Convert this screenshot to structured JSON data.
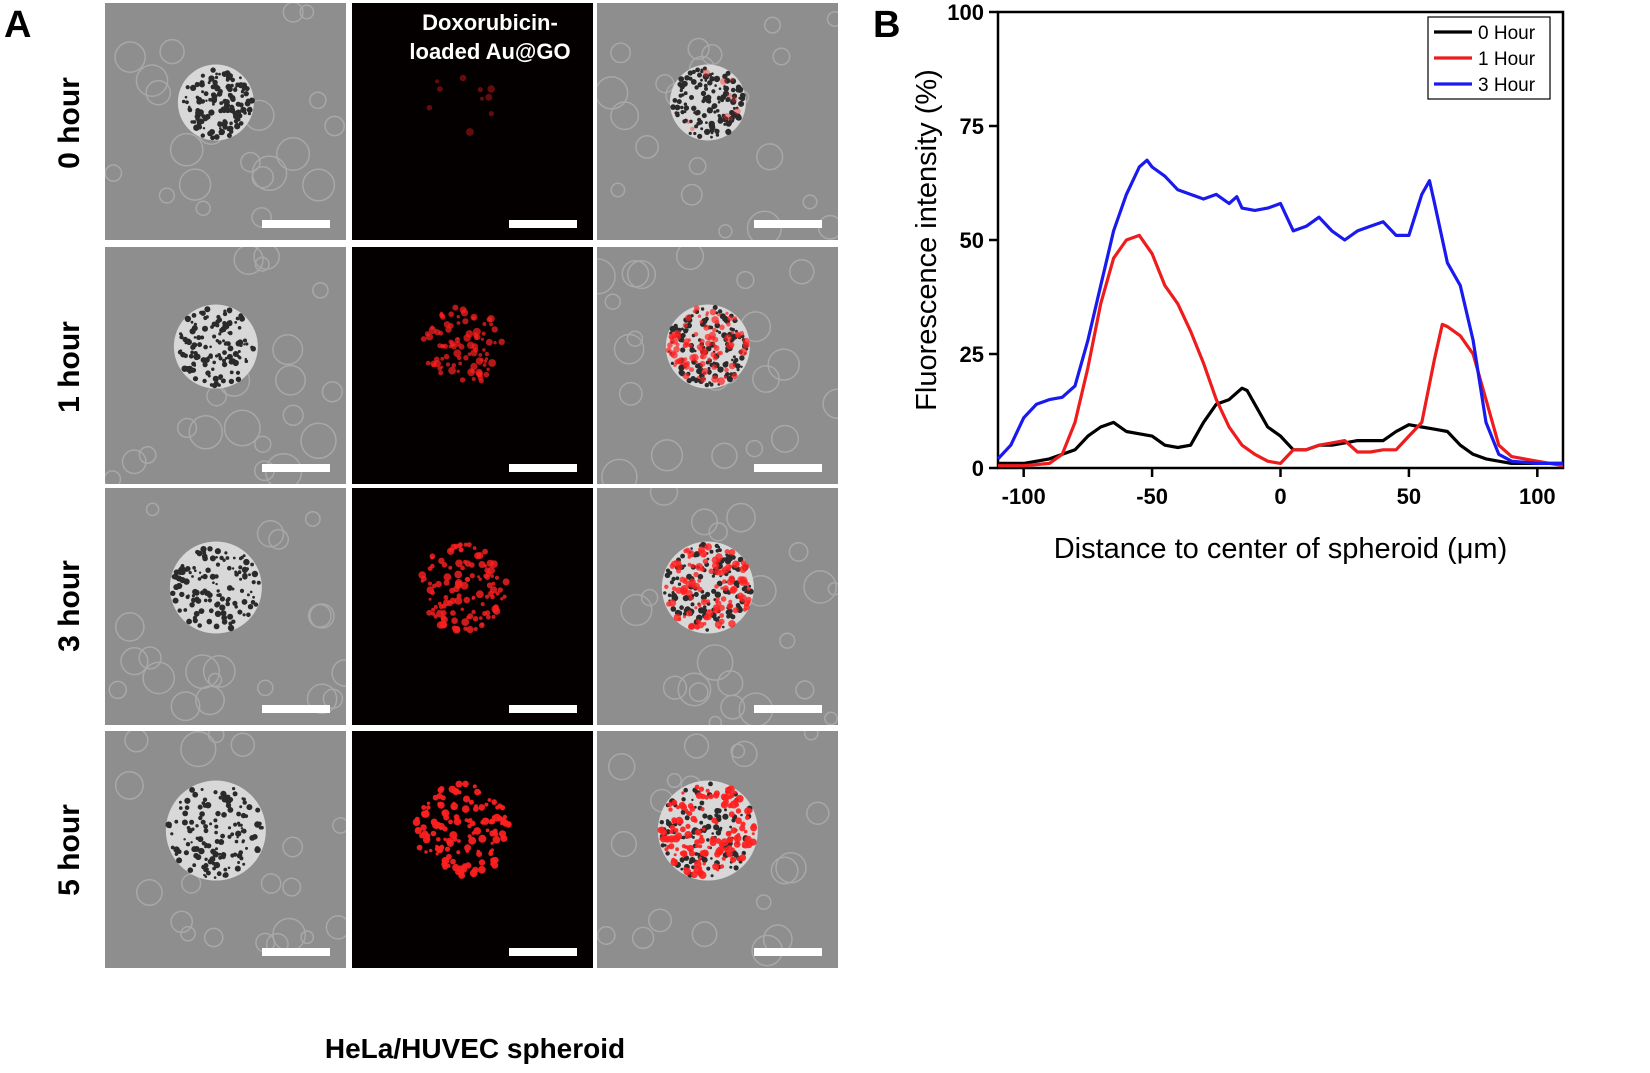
{
  "figure": {
    "panel_a": {
      "letter": "A",
      "column_title_line1": "Doxorubicin-",
      "column_title_line2": "loaded Au@GO",
      "rows": [
        {
          "label": "0 hour",
          "red_level": 0.06
        },
        {
          "label": "1 hour",
          "red_level": 0.6
        },
        {
          "label": "3 hour",
          "red_level": 0.75
        },
        {
          "label": "5 hour",
          "red_level": 0.95
        }
      ],
      "caption": "HeLa/HUVEC spheroid"
    },
    "panel_b": {
      "letter": "B"
    }
  },
  "colors": {
    "black": "#000000",
    "red": "#ee1c1c",
    "blue": "#1a1aee",
    "fluor": "#ff2020"
  },
  "chart_data": {
    "type": "line",
    "title": "",
    "xlabel": "Distance to center of spheroid (μm)",
    "ylabel": "Fluorescence intensity (%)",
    "xlim": [
      -110,
      110
    ],
    "ylim": [
      0,
      100
    ],
    "xticks": [
      -100,
      -50,
      0,
      50,
      100
    ],
    "yticks": [
      0,
      25,
      50,
      75,
      100
    ],
    "grid": false,
    "legend_position": "top-right",
    "series": [
      {
        "name": "0 Hour",
        "color": "#000000",
        "x": [
          -110,
          -100,
          -90,
          -80,
          -75,
          -70,
          -65,
          -60,
          -55,
          -50,
          -45,
          -40,
          -35,
          -30,
          -25,
          -20,
          -15,
          -13,
          -10,
          -5,
          0,
          5,
          10,
          15,
          20,
          25,
          30,
          35,
          40,
          45,
          50,
          55,
          60,
          65,
          70,
          75,
          80,
          90,
          100,
          110
        ],
        "y": [
          1,
          1,
          2,
          4,
          7,
          9,
          10,
          8,
          7.5,
          7,
          5,
          4.5,
          5,
          10,
          14,
          15,
          17.5,
          17,
          14,
          9,
          7,
          4,
          4,
          5,
          5,
          5.5,
          6,
          6,
          6,
          8,
          9.5,
          9,
          8.5,
          8,
          5,
          3,
          2,
          1,
          1,
          1
        ]
      },
      {
        "name": "1 Hour",
        "color": "#ee1c1c",
        "x": [
          -110,
          -100,
          -90,
          -85,
          -80,
          -75,
          -70,
          -65,
          -60,
          -55,
          -50,
          -45,
          -40,
          -35,
          -30,
          -25,
          -20,
          -15,
          -10,
          -5,
          0,
          5,
          10,
          15,
          20,
          25,
          30,
          35,
          40,
          45,
          50,
          55,
          60,
          63,
          65,
          70,
          75,
          80,
          85,
          90,
          100,
          110
        ],
        "y": [
          0.5,
          0.5,
          1,
          3,
          10,
          22,
          36,
          46,
          50,
          51,
          47,
          40,
          36,
          30,
          23,
          15,
          9,
          5,
          3,
          1.5,
          1,
          4,
          4,
          5,
          5.5,
          6,
          3.5,
          3.5,
          4,
          4,
          7,
          10,
          24,
          31.5,
          31,
          29,
          25,
          15,
          5,
          2.5,
          1.5,
          0.5
        ]
      },
      {
        "name": "3 Hour",
        "color": "#1a1aee",
        "x": [
          -110,
          -105,
          -100,
          -95,
          -90,
          -85,
          -80,
          -75,
          -70,
          -65,
          -60,
          -55,
          -52,
          -50,
          -45,
          -40,
          -35,
          -30,
          -25,
          -20,
          -17,
          -15,
          -10,
          -5,
          0,
          5,
          10,
          15,
          20,
          25,
          30,
          35,
          40,
          45,
          50,
          55,
          58,
          60,
          65,
          70,
          75,
          80,
          85,
          90,
          100,
          110
        ],
        "y": [
          2,
          5,
          11,
          14,
          15,
          15.5,
          18,
          28,
          40,
          52,
          60,
          66,
          67.5,
          66,
          64,
          61,
          60,
          59,
          60,
          58,
          59.5,
          57,
          56.5,
          57,
          58,
          52,
          53,
          55,
          52,
          50,
          52,
          53,
          54,
          51,
          51,
          60,
          63,
          58,
          45,
          40,
          28,
          10,
          3,
          1.5,
          1,
          1
        ]
      }
    ]
  }
}
